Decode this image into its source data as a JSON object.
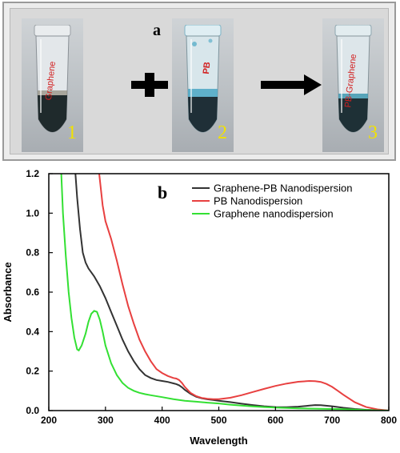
{
  "panel_a": {
    "label": "a",
    "tubes": [
      {
        "text": "Graphene",
        "number": "1",
        "liquid_color": "#1f2a2c",
        "tint": "#8e8a7a"
      },
      {
        "text": "PB",
        "number": "2",
        "liquid_color": "#1f2f37",
        "tint": "#4aa6c4"
      },
      {
        "text": "PB-Graphene",
        "number": "3",
        "liquid_color": "#1e3036",
        "tint": "#3f98b0"
      }
    ],
    "operator_icons": [
      "plus-icon",
      "right-arrow-icon"
    ]
  },
  "chart_data": {
    "type": "line",
    "panel_label": "b",
    "xlabel": "Wavelength",
    "ylabel": "Absorbance",
    "xlim": [
      200,
      800
    ],
    "ylim": [
      0,
      1.2
    ],
    "xticks": [
      "200",
      "300",
      "400",
      "500",
      "600",
      "700",
      "800"
    ],
    "yticks": [
      "0.0",
      "0.2",
      "0.4",
      "0.6",
      "0.8",
      "1.0",
      "1.2"
    ],
    "grid": false,
    "legend_position": "top-right",
    "series": [
      {
        "name": "Graphene-PB Nanodispersion",
        "color": "#333333",
        "x": [
          247,
          250,
          255,
          260,
          265,
          270,
          280,
          290,
          300,
          310,
          320,
          330,
          340,
          350,
          360,
          370,
          380,
          390,
          400,
          410,
          420,
          425,
          430,
          435,
          440,
          450,
          460,
          470,
          480,
          490,
          500,
          520,
          540,
          560,
          580,
          600,
          620,
          640,
          660,
          670,
          680,
          700,
          720,
          740,
          760,
          780,
          800
        ],
        "y": [
          1.2,
          1.08,
          0.92,
          0.8,
          0.75,
          0.72,
          0.68,
          0.63,
          0.57,
          0.5,
          0.43,
          0.36,
          0.3,
          0.25,
          0.21,
          0.18,
          0.165,
          0.155,
          0.15,
          0.145,
          0.138,
          0.134,
          0.128,
          0.118,
          0.105,
          0.085,
          0.07,
          0.062,
          0.057,
          0.054,
          0.05,
          0.043,
          0.035,
          0.028,
          0.022,
          0.018,
          0.017,
          0.02,
          0.025,
          0.028,
          0.027,
          0.022,
          0.014,
          0.008,
          0.004,
          0.002,
          0.0
        ]
      },
      {
        "name": "PB Nanodispersion",
        "color": "#e84040",
        "x": [
          289,
          295,
          300,
          310,
          320,
          330,
          340,
          350,
          360,
          370,
          380,
          390,
          400,
          410,
          420,
          425,
          430,
          435,
          440,
          450,
          460,
          470,
          480,
          490,
          500,
          520,
          540,
          560,
          580,
          600,
          620,
          640,
          660,
          670,
          680,
          690,
          700,
          710,
          720,
          740,
          760,
          780,
          800
        ],
        "y": [
          1.2,
          1.04,
          0.96,
          0.87,
          0.76,
          0.64,
          0.53,
          0.44,
          0.36,
          0.3,
          0.25,
          0.21,
          0.19,
          0.175,
          0.165,
          0.162,
          0.155,
          0.14,
          0.12,
          0.09,
          0.073,
          0.064,
          0.06,
          0.058,
          0.058,
          0.065,
          0.078,
          0.094,
          0.11,
          0.125,
          0.137,
          0.146,
          0.15,
          0.149,
          0.145,
          0.135,
          0.12,
          0.1,
          0.08,
          0.042,
          0.018,
          0.006,
          0.0
        ]
      },
      {
        "name": "Graphene nanodispersion",
        "color": "#33e033",
        "x": [
          222,
          225,
          230,
          235,
          240,
          245,
          250,
          253,
          258,
          265,
          270,
          275,
          280,
          285,
          290,
          295,
          300,
          310,
          320,
          330,
          340,
          350,
          360,
          370,
          380,
          400,
          420,
          440,
          460,
          480,
          500,
          520,
          540,
          560,
          580,
          600,
          620,
          640,
          660,
          680,
          700,
          720,
          740,
          760,
          780,
          800
        ],
        "y": [
          1.2,
          1.0,
          0.78,
          0.6,
          0.47,
          0.37,
          0.31,
          0.305,
          0.33,
          0.39,
          0.45,
          0.49,
          0.505,
          0.5,
          0.46,
          0.4,
          0.33,
          0.24,
          0.18,
          0.14,
          0.115,
          0.1,
          0.09,
          0.083,
          0.078,
          0.068,
          0.058,
          0.05,
          0.045,
          0.04,
          0.036,
          0.03,
          0.025,
          0.021,
          0.018,
          0.015,
          0.013,
          0.011,
          0.01,
          0.009,
          0.008,
          0.007,
          0.005,
          0.003,
          0.001,
          0.0
        ]
      }
    ]
  }
}
